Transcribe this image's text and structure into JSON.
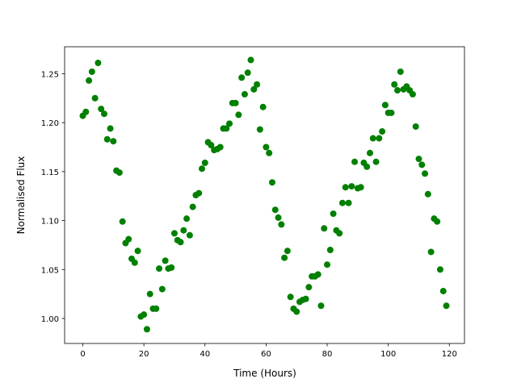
{
  "chart_data": {
    "type": "scatter",
    "xlabel": "Time (Hours)",
    "ylabel": "Normalised Flux",
    "color": "green",
    "x": [
      0,
      1,
      2,
      3,
      4,
      5,
      6,
      7,
      8,
      9,
      10,
      11,
      12,
      13,
      14,
      15,
      16,
      17,
      18,
      19,
      20,
      21,
      22,
      23,
      24,
      25,
      26,
      27,
      28,
      29,
      30,
      31,
      32,
      33,
      34,
      35,
      36,
      37,
      38,
      39,
      40,
      41,
      42,
      43,
      44,
      45,
      46,
      47,
      48,
      49,
      50,
      51,
      52,
      53,
      54,
      55,
      56,
      57,
      58,
      59,
      60,
      61,
      62,
      63,
      64,
      65,
      66,
      67,
      68,
      69,
      70,
      71,
      72,
      73,
      74,
      75,
      76,
      77,
      78,
      79,
      80,
      81,
      82,
      83,
      84,
      85,
      86,
      87,
      88,
      89,
      90,
      91,
      92,
      93,
      94,
      95,
      96,
      97,
      98,
      99,
      100,
      101,
      102,
      103,
      104,
      105,
      106,
      107,
      108,
      109,
      110,
      111,
      112,
      113,
      114,
      115,
      116,
      117,
      118,
      119
    ],
    "values": [
      1.207,
      1.211,
      1.243,
      1.252,
      1.225,
      1.261,
      1.214,
      1.209,
      1.183,
      1.194,
      1.181,
      1.151,
      1.149,
      1.099,
      1.077,
      1.081,
      1.061,
      1.057,
      1.069,
      1.002,
      1.004,
      0.989,
      1.025,
      1.01,
      1.01,
      1.051,
      1.03,
      1.059,
      1.051,
      1.052,
      1.087,
      1.08,
      1.078,
      1.09,
      1.102,
      1.085,
      1.114,
      1.126,
      1.128,
      1.153,
      1.159,
      1.18,
      1.177,
      1.172,
      1.173,
      1.175,
      1.194,
      1.194,
      1.199,
      1.22,
      1.22,
      1.208,
      1.246,
      1.229,
      1.251,
      1.264,
      1.234,
      1.239,
      1.193,
      1.216,
      1.175,
      1.169,
      1.139,
      1.111,
      1.103,
      1.096,
      1.062,
      1.069,
      1.022,
      1.01,
      1.007,
      1.017,
      1.019,
      1.02,
      1.032,
      1.043,
      1.043,
      1.045,
      1.013,
      1.092,
      1.055,
      1.07,
      1.107,
      1.09,
      1.087,
      1.118,
      1.134,
      1.118,
      1.135,
      1.16,
      1.133,
      1.134,
      1.159,
      1.155,
      1.169,
      1.184,
      1.16,
      1.184,
      1.191,
      1.218,
      1.21,
      1.21,
      1.239,
      1.233,
      1.252,
      1.234,
      1.237,
      1.233,
      1.229,
      1.196,
      1.163,
      1.157,
      1.148,
      1.127,
      1.068,
      1.102,
      1.099,
      1.05,
      1.028,
      1.013
    ],
    "xlim": [
      -5.95,
      124.95
    ],
    "xticks": [
      0,
      20,
      40,
      60,
      80,
      100,
      120
    ],
    "ylim": [
      0.9745,
      1.2775
    ],
    "yticks": [
      {
        "value": 1.0,
        "label": "1.00"
      },
      {
        "value": 1.05,
        "label": "1.05"
      },
      {
        "value": 1.1,
        "label": "1.10"
      },
      {
        "value": 1.15,
        "label": "1.15"
      },
      {
        "value": 1.2,
        "label": "1.20"
      },
      {
        "value": 1.25,
        "label": "1.25"
      }
    ]
  }
}
